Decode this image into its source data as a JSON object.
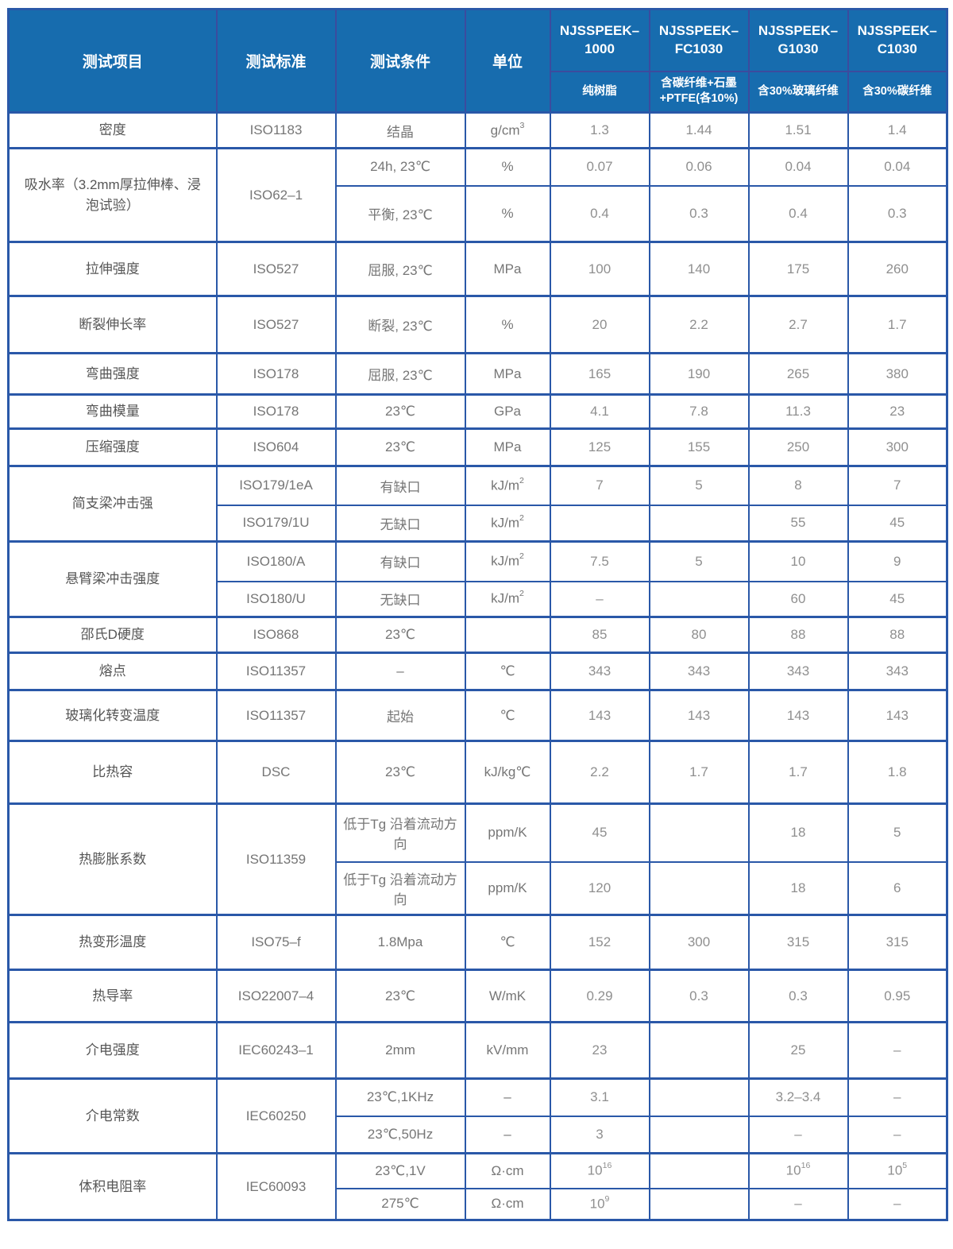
{
  "colors": {
    "header_bg": "#176cae",
    "header_divider": "#3c4b9e",
    "grid_border": "#2a58a8",
    "item_text": "#565656",
    "value_text": "#8f8f8f",
    "header_text": "#ffffff"
  },
  "table": {
    "header": {
      "labels": [
        "测试项目",
        "测试标准",
        "测试条件",
        "单位"
      ],
      "products": [
        {
          "name": "NJSSPEEK–1000",
          "desc": "纯树脂"
        },
        {
          "name": "NJSSPEEK–FC1030",
          "desc": "含碳纤维+石墨+PTFE(各10%)"
        },
        {
          "name": "NJSSPEEK–G1030",
          "desc": "含30%玻璃纤维"
        },
        {
          "name": "NJSSPEEK–C1030",
          "desc": "含30%碳纤维"
        }
      ]
    },
    "groups": [
      {
        "item": "密度",
        "standard": "ISO1183",
        "rows": [
          {
            "condition": "结晶",
            "unit": "g/cm^3",
            "values": [
              "1.3",
              "1.44",
              "1.51",
              "1.4"
            ]
          }
        ]
      },
      {
        "item": "吸水率（3.2mm厚拉伸棒、浸泡试验）",
        "standard": "ISO62–1",
        "rows": [
          {
            "condition": "24h, 23℃",
            "unit": "%",
            "values": [
              "0.07",
              "0.06",
              "0.04",
              "0.04"
            ]
          },
          {
            "condition": "平衡, 23℃",
            "unit": "%",
            "values": [
              "0.4",
              "0.3",
              "0.4",
              "0.3"
            ]
          }
        ]
      },
      {
        "item": "拉伸强度",
        "standard": "ISO527",
        "rows": [
          {
            "condition": "屈服, 23℃",
            "unit": "MPa",
            "values": [
              "100",
              "140",
              "175",
              "260"
            ]
          }
        ]
      },
      {
        "item": "断裂伸长率",
        "standard": "ISO527",
        "rows": [
          {
            "condition": "断裂, 23℃",
            "unit": "%",
            "values": [
              "20",
              "2.2",
              "2.7",
              "1.7"
            ]
          }
        ]
      },
      {
        "item": "弯曲强度",
        "standard": "ISO178",
        "rows": [
          {
            "condition": "屈服, 23℃",
            "unit": "MPa",
            "values": [
              "165",
              "190",
              "265",
              "380"
            ]
          }
        ]
      },
      {
        "item": "弯曲模量",
        "standard": "ISO178",
        "rows": [
          {
            "condition": "23℃",
            "unit": "GPa",
            "values": [
              "4.1",
              "7.8",
              "11.3",
              "23"
            ]
          }
        ]
      },
      {
        "item": "压缩强度",
        "standard": "ISO604",
        "rows": [
          {
            "condition": "23℃",
            "unit": "MPa",
            "values": [
              "125",
              "155",
              "250",
              "300"
            ]
          }
        ]
      },
      {
        "item": "简支梁冲击强",
        "rows": [
          {
            "standard": "ISO179/1eA",
            "condition": "有缺口",
            "unit": "kJ/m^2",
            "values": [
              "7",
              "5",
              "8",
              "7"
            ]
          },
          {
            "standard": "ISO179/1U",
            "condition": "无缺口",
            "unit": "kJ/m^2",
            "values": [
              "",
              "",
              "55",
              "45"
            ]
          }
        ]
      },
      {
        "item": "悬臂梁冲击强度",
        "rows": [
          {
            "standard": "ISO180/A",
            "condition": "有缺口",
            "unit": "kJ/m^2",
            "values": [
              "7.5",
              "5",
              "10",
              "9"
            ]
          },
          {
            "standard": "ISO180/U",
            "condition": "无缺口",
            "unit": "kJ/m^2",
            "values": [
              "–",
              "",
              "60",
              "45"
            ]
          }
        ]
      },
      {
        "item": "邵氏D硬度",
        "standard": "ISO868",
        "rows": [
          {
            "condition": "23℃",
            "unit": "",
            "values": [
              "85",
              "80",
              "88",
              "88"
            ]
          }
        ]
      },
      {
        "item": "熔点",
        "standard": "ISO11357",
        "rows": [
          {
            "condition": "–",
            "unit": "℃",
            "values": [
              "343",
              "343",
              "343",
              "343"
            ]
          }
        ]
      },
      {
        "item": "玻璃化转变温度",
        "standard": "ISO11357",
        "rows": [
          {
            "condition": "起始",
            "unit": "℃",
            "values": [
              "143",
              "143",
              "143",
              "143"
            ]
          }
        ]
      },
      {
        "item": "比热容",
        "standard": "DSC",
        "rows": [
          {
            "condition": "23℃",
            "unit": "kJ/kg℃",
            "values": [
              "2.2",
              "1.7",
              "1.7",
              "1.8"
            ]
          }
        ]
      },
      {
        "item": "热膨胀系数",
        "standard": "ISO11359",
        "rows": [
          {
            "condition": "低于Tg 沿着流动方向",
            "unit": "ppm/K",
            "values": [
              "45",
              "",
              "18",
              "5"
            ]
          },
          {
            "condition": "低于Tg 沿着流动方向",
            "unit": "ppm/K",
            "values": [
              "120",
              "",
              "18",
              "6"
            ]
          }
        ]
      },
      {
        "item": "热变形温度",
        "standard": "ISO75–f",
        "rows": [
          {
            "condition": "1.8Mpa",
            "unit": "℃",
            "values": [
              "152",
              "300",
              "315",
              "315"
            ]
          }
        ]
      },
      {
        "item": "热导率",
        "standard": "ISO22007–4",
        "rows": [
          {
            "condition": "23℃",
            "unit": "W/mK",
            "values": [
              "0.29",
              "0.3",
              "0.3",
              "0.95"
            ]
          }
        ]
      },
      {
        "item": "介电强度",
        "standard": "IEC60243–1",
        "rows": [
          {
            "condition": "2mm",
            "unit": "kV/mm",
            "values": [
              "23",
              "",
              "25",
              "–"
            ]
          }
        ]
      },
      {
        "item": "介电常数",
        "standard": "IEC60250",
        "rows": [
          {
            "condition": "23℃,1KHz",
            "unit": "–",
            "values": [
              "3.1",
              "",
              "3.2–3.4",
              "–"
            ]
          },
          {
            "condition": "23℃,50Hz",
            "unit": "–",
            "values": [
              "3",
              "",
              "–",
              "–"
            ]
          }
        ]
      },
      {
        "item": "体积电阻率",
        "standard": "IEC60093",
        "rows": [
          {
            "condition": "23℃,1V",
            "unit": "Ω·cm",
            "values": [
              "10^16",
              "",
              "10^16",
              "10^5"
            ]
          },
          {
            "condition": "275℃",
            "unit": "Ω·cm",
            "values": [
              "10^9",
              "",
              "–",
              "–"
            ]
          }
        ]
      }
    ]
  }
}
